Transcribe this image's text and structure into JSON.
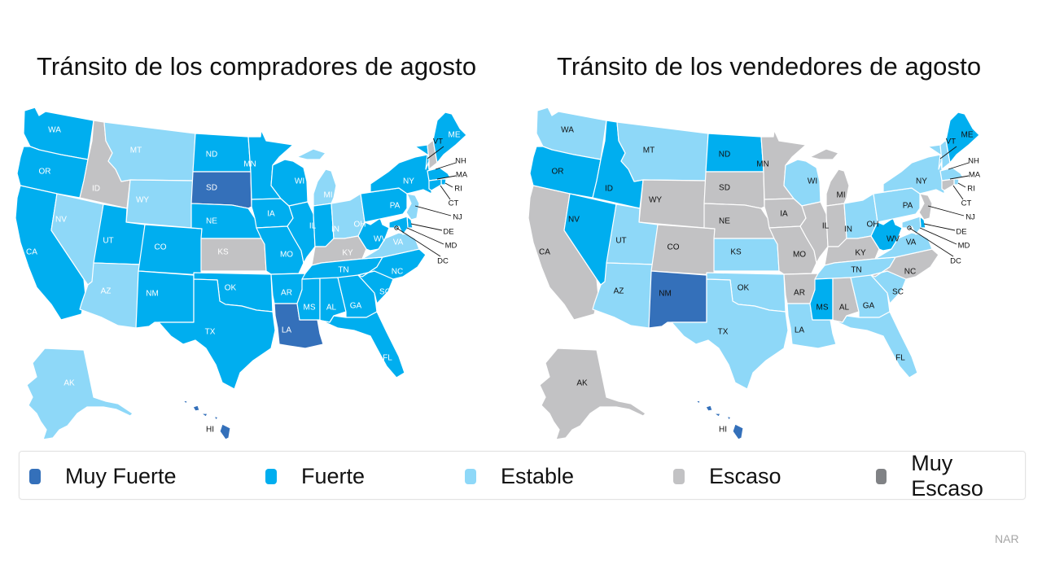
{
  "titles": {
    "buyers": "Tránsito de los compradores de agosto",
    "sellers": "Tránsito de los vendedores de agosto"
  },
  "legend": [
    {
      "key": "muy_fuerte",
      "label": "Muy Fuerte",
      "color": "#3470BA"
    },
    {
      "key": "fuerte",
      "label": "Fuerte",
      "color": "#00AEEF"
    },
    {
      "key": "estable",
      "label": "Estable",
      "color": "#8ED8F8"
    },
    {
      "key": "escaso",
      "label": "Escaso",
      "color": "#C2C2C4"
    },
    {
      "key": "muy_escaso",
      "label": "Muy Escaso",
      "color": "#808285"
    }
  ],
  "source": "NAR",
  "chart_data": [
    {
      "type": "choropleth",
      "title": "Tránsito de los compradores de agosto",
      "categories": [
        "Muy Fuerte",
        "Fuerte",
        "Estable",
        "Escaso",
        "Muy Escaso"
      ],
      "values": {
        "WA": "Fuerte",
        "OR": "Fuerte",
        "CA": "Fuerte",
        "ID": "Escaso",
        "NV": "Estable",
        "MT": "Estable",
        "WY": "Estable",
        "UT": "Fuerte",
        "AZ": "Estable",
        "CO": "Fuerte",
        "NM": "Fuerte",
        "ND": "Fuerte",
        "SD": "Muy Fuerte",
        "NE": "Fuerte",
        "KS": "Escaso",
        "OK": "Fuerte",
        "TX": "Fuerte",
        "MN": "Fuerte",
        "IA": "Fuerte",
        "MO": "Fuerte",
        "AR": "Fuerte",
        "LA": "Muy Fuerte",
        "WI": "Fuerte",
        "IL": "Fuerte",
        "MI": "Estable",
        "IN": "Fuerte",
        "OH": "Estable",
        "KY": "Escaso",
        "TN": "Fuerte",
        "MS": "Fuerte",
        "AL": "Fuerte",
        "GA": "Fuerte",
        "FL": "Fuerte",
        "SC": "Fuerte",
        "NC": "Fuerte",
        "VA": "Estable",
        "WV": "Fuerte",
        "PA": "Fuerte",
        "NY": "Fuerte",
        "VT": "Fuerte",
        "NH": "Escaso",
        "ME": "Fuerte",
        "MA": "Fuerte",
        "RI": "Fuerte",
        "CT": "Fuerte",
        "NJ": "Estable",
        "DE": "Fuerte",
        "MD": "Fuerte",
        "DC": "Fuerte",
        "AK": "Estable",
        "HI": "Muy Fuerte"
      }
    },
    {
      "type": "choropleth",
      "title": "Tránsito de los vendedores de agosto",
      "categories": [
        "Muy Fuerte",
        "Fuerte",
        "Estable",
        "Escaso",
        "Muy Escaso"
      ],
      "values": {
        "WA": "Estable",
        "OR": "Fuerte",
        "CA": "Escaso",
        "ID": "Fuerte",
        "NV": "Fuerte",
        "MT": "Estable",
        "WY": "Escaso",
        "UT": "Estable",
        "AZ": "Estable",
        "CO": "Escaso",
        "NM": "Muy Fuerte",
        "ND": "Fuerte",
        "SD": "Escaso",
        "NE": "Escaso",
        "KS": "Estable",
        "OK": "Estable",
        "TX": "Estable",
        "MN": "Escaso",
        "IA": "Escaso",
        "MO": "Escaso",
        "AR": "Escaso",
        "LA": "Estable",
        "WI": "Estable",
        "IL": "Escaso",
        "MI": "Escaso",
        "IN": "Escaso",
        "OH": "Estable",
        "KY": "Escaso",
        "TN": "Estable",
        "MS": "Fuerte",
        "AL": "Escaso",
        "GA": "Estable",
        "FL": "Estable",
        "SC": "Estable",
        "NC": "Escaso",
        "VA": "Estable",
        "WV": "Fuerte",
        "PA": "Estable",
        "NY": "Estable",
        "VT": "Estable",
        "NH": "Estable",
        "ME": "Fuerte",
        "MA": "Estable",
        "RI": "Estable",
        "CT": "Escaso",
        "NJ": "Escaso",
        "DE": "Fuerte",
        "MD": "Estable",
        "DC": "Estable",
        "AK": "Escaso",
        "HI": "Muy Fuerte"
      }
    }
  ]
}
